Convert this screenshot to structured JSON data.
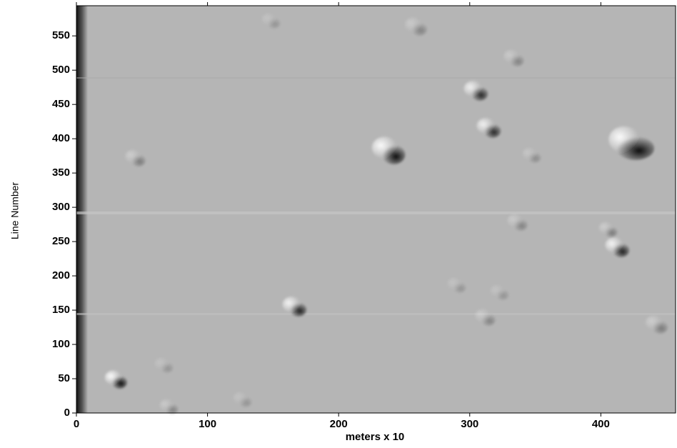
{
  "chart_data": {
    "type": "image",
    "x_label": "meters x 10",
    "y_label": "Line Number",
    "xlim": [
      0,
      457
    ],
    "xticks": [
      0,
      100,
      200,
      300,
      400
    ],
    "ylim": [
      0,
      594
    ],
    "yticks": [
      0,
      50,
      100,
      150,
      200,
      250,
      300,
      350,
      400,
      450,
      500,
      550
    ],
    "colormap": "gray"
  }
}
